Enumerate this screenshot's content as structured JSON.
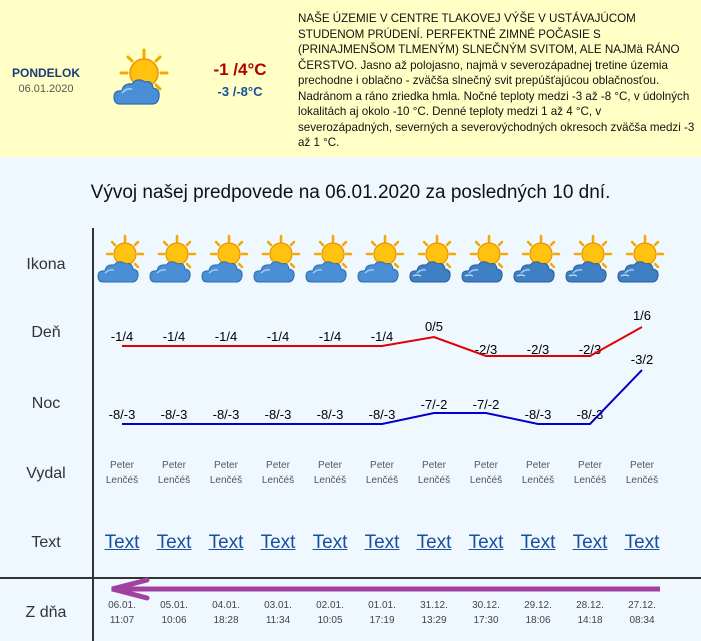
{
  "current": {
    "day": "PONDELOK",
    "date": "06.01.2020",
    "icon": "sun-cloud-icon",
    "temp_day": "-1 /4°C",
    "temp_night": "-3 /-8°C",
    "text": "NAŠE ÚZEMIE V CENTRE TLAKOVEJ VÝŠE V USTÁVAJÚCOM STUDENOM PRÚDENÍ. PERFEKTNÉ ZIMNÉ POČASIE S (PRINAJMENŠOM TLMENÝM) SLNEČNÝM SVITOM, ALE NAJMä RÁNO ČERSTVO. Jasno až polojasno, najmä v severozápadnej tretine územia prechodne i oblačno - zväčša slnečný svit prepúšťajúcou oblačnosťou. Nadránom a ráno zriedka hmla. Nočné teploty medzi -3 až -8 °C, v údolných lokalitách aj okolo -10 °C. Denné teploty medzi 1 až 4 °C, v severozápadných, severných a severovýchodných okresoch zväčša medzi -3 až 1 °C."
  },
  "history": {
    "title": "Vývoj našej predpovede na 06.01.2020 za posledných 10 dní.",
    "row_labels": {
      "icon": "Ikona",
      "day": "Deň",
      "night": "Noc",
      "author": "Vydal",
      "text": "Text",
      "from": "Z dňa"
    },
    "colors": {
      "day_line": "#e00000",
      "night_line": "#0000cc",
      "arrow": "#a040a0"
    },
    "columns": [
      {
        "icon": "sun-cloud-icon",
        "day": "-1/4",
        "night": "-8/-3",
        "author_first": "Peter",
        "author_last": "Lenčéš",
        "text": "Text",
        "date": "06.01.",
        "time": "11:07"
      },
      {
        "icon": "sun-cloud-icon",
        "day": "-1/4",
        "night": "-8/-3",
        "author_first": "Peter",
        "author_last": "Lenčéš",
        "text": "Text",
        "date": "05.01.",
        "time": "10:06"
      },
      {
        "icon": "sun-cloud-icon",
        "day": "-1/4",
        "night": "-8/-3",
        "author_first": "Peter",
        "author_last": "Lenčéš",
        "text": "Text",
        "date": "04.01.",
        "time": "18:28"
      },
      {
        "icon": "sun-cloud-icon",
        "day": "-1/4",
        "night": "-8/-3",
        "author_first": "Peter",
        "author_last": "Lenčéš",
        "text": "Text",
        "date": "03.01.",
        "time": "11:34"
      },
      {
        "icon": "sun-cloud-icon",
        "day": "-1/4",
        "night": "-8/-3",
        "author_first": "Peter",
        "author_last": "Lenčéš",
        "text": "Text",
        "date": "02.01.",
        "time": "10:05"
      },
      {
        "icon": "sun-cloud-icon",
        "day": "-1/4",
        "night": "-8/-3",
        "author_first": "Peter",
        "author_last": "Lenčéš",
        "text": "Text",
        "date": "01.01.",
        "time": "17:19"
      },
      {
        "icon": "sun-cloud-fog-icon",
        "day": "0/5",
        "night": "-7/-2",
        "author_first": "Peter",
        "author_last": "Lenčéš",
        "text": "Text",
        "date": "31.12.",
        "time": "13:29"
      },
      {
        "icon": "sun-cloud-fog-icon",
        "day": "-2/3",
        "night": "-7/-2",
        "author_first": "Peter",
        "author_last": "Lenčéš",
        "text": "Text",
        "date": "30.12.",
        "time": "17:30"
      },
      {
        "icon": "sun-cloud-fog-icon",
        "day": "-2/3",
        "night": "-8/-3",
        "author_first": "Peter",
        "author_last": "Lenčéš",
        "text": "Text",
        "date": "29.12.",
        "time": "18:06"
      },
      {
        "icon": "sun-cloud-fog-icon",
        "day": "-2/3",
        "night": "-8/-3",
        "author_first": "Peter",
        "author_last": "Lenčéš",
        "text": "Text",
        "date": "28.12.",
        "time": "14:18"
      },
      {
        "icon": "sun-cloud-fog-icon",
        "day": "1/6",
        "night": "-3/2",
        "author_first": "Peter",
        "author_last": "Lenčéš",
        "text": "Text",
        "date": "27.12.",
        "time": "08:34"
      }
    ]
  }
}
